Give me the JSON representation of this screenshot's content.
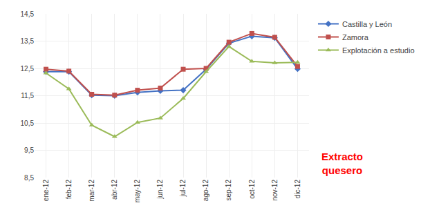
{
  "chart_data": {
    "type": "line",
    "categories": [
      "ene-12",
      "feb-12",
      "mar-12",
      "abr-12",
      "may-12",
      "jun-12",
      "jul-12",
      "ago-12",
      "sep-12",
      "oct-12",
      "nov-12",
      "dic-12"
    ],
    "series": [
      {
        "name": "Castilla y León",
        "color": "#4472C4",
        "marker": "diamond",
        "values": [
          12.38,
          12.38,
          11.52,
          11.5,
          11.62,
          11.68,
          11.7,
          12.47,
          13.42,
          13.68,
          13.62,
          12.48
        ]
      },
      {
        "name": "Zamora",
        "color": "#C0504D",
        "marker": "square",
        "values": [
          12.47,
          12.4,
          11.55,
          11.52,
          11.7,
          11.78,
          12.47,
          12.5,
          13.46,
          13.78,
          13.64,
          12.57
        ]
      },
      {
        "name": "Explotación a estudio",
        "color": "#9BBB59",
        "marker": "triangle-up",
        "values": [
          12.33,
          11.75,
          10.42,
          10.0,
          10.52,
          10.68,
          11.4,
          12.38,
          13.3,
          12.76,
          12.7,
          12.72
        ]
      }
    ],
    "ylim": [
      8.5,
      14.5
    ],
    "yticks": [
      {
        "value": 8.5,
        "label": "8,5"
      },
      {
        "value": 9.5,
        "label": "9,5"
      },
      {
        "value": 10.5,
        "label": "10,5"
      },
      {
        "value": 11.5,
        "label": "11,5"
      },
      {
        "value": 12.5,
        "label": "12,5"
      },
      {
        "value": 13.5,
        "label": "13,5"
      },
      {
        "value": 14.5,
        "label": "14,5"
      }
    ],
    "grid": true,
    "legend": "right",
    "annotation": {
      "text": "Extracto\nquesero",
      "color": "#FF0000"
    }
  }
}
